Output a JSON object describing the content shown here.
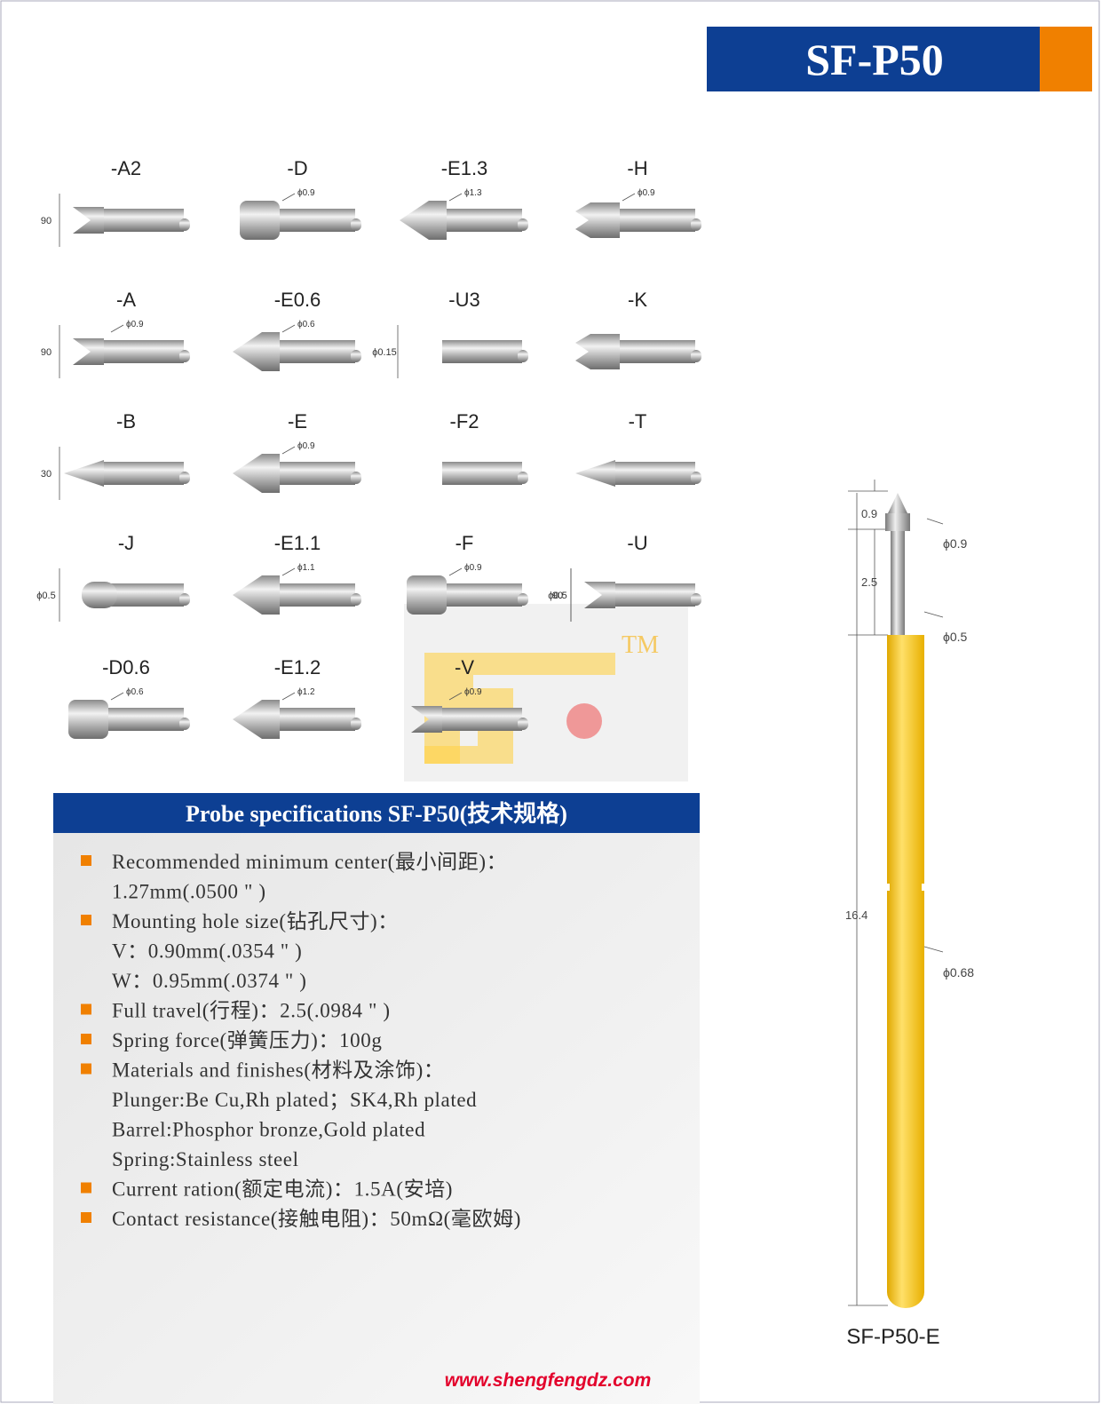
{
  "header": {
    "title": "SF-P50"
  },
  "tips": [
    {
      "label": "-A2",
      "dims": [
        "90"
      ]
    },
    {
      "label": "-D",
      "dims": [
        "ϕ0.9"
      ]
    },
    {
      "label": "-E1.3",
      "dims": [
        "ϕ1.3"
      ]
    },
    {
      "label": "-H",
      "dims": [
        "ϕ0.9"
      ]
    },
    {
      "label": "-A",
      "dims": [
        "ϕ0.9",
        "90"
      ]
    },
    {
      "label": "-E0.6",
      "dims": [
        "ϕ0.6"
      ]
    },
    {
      "label": "-U3",
      "dims": [
        "ϕ0.15"
      ]
    },
    {
      "label": "-K",
      "dims": []
    },
    {
      "label": "-B",
      "dims": [
        "30"
      ]
    },
    {
      "label": "-E",
      "dims": [
        "ϕ0.9"
      ]
    },
    {
      "label": "-F2",
      "dims": []
    },
    {
      "label": "-T",
      "dims": []
    },
    {
      "label": "-J",
      "dims": [
        "ϕ0.5"
      ]
    },
    {
      "label": "-E1.1",
      "dims": [
        "ϕ1.1"
      ]
    },
    {
      "label": "-F",
      "dims": [
        "ϕ0.9"
      ]
    },
    {
      "label": "-U",
      "dims": [
        "ϕ0.5",
        "90"
      ]
    },
    {
      "label": "-D0.6",
      "dims": [
        "ϕ0.6"
      ]
    },
    {
      "label": "-E1.2",
      "dims": [
        "ϕ1.2"
      ]
    },
    {
      "label": "-V",
      "dims": [
        "ϕ0.9"
      ]
    }
  ],
  "watermark": {
    "mark": "TM"
  },
  "specs": {
    "title": "Probe specifications SF-P50(技术规格)",
    "items": [
      {
        "lines": [
          "Recommended minimum center(最小间距)：",
          "1.27mm(.0500 \" )"
        ]
      },
      {
        "lines": [
          "Mounting hole size(钻孔尺寸)：",
          "V：0.90mm(.0354 \" )",
          "W：0.95mm(.0374 \" )"
        ]
      },
      {
        "lines": [
          "Full travel(行程)：2.5(.0984 \" )"
        ]
      },
      {
        "lines": [
          "Spring force(弹簧压力)：100g"
        ]
      },
      {
        "lines": [
          "Materials and finishes(材料及涂饰)：",
          "Plunger:Be Cu,Rh plated；SK4,Rh plated",
          "Barrel:Phosphor bronze,Gold plated",
          "Spring:Stainless steel"
        ]
      },
      {
        "lines": [
          "Current ration(额定电流)：1.5A(安培)"
        ]
      },
      {
        "lines": [
          "Contact resistance(接触电阻)：50mΩ(毫欧姆)"
        ]
      }
    ]
  },
  "probe": {
    "head_length": "0.9",
    "travel": "2.5",
    "length": "16.4",
    "head_dia": "ϕ0.9",
    "plunger_dia": "ϕ0.5",
    "barrel_dia": "ϕ0.68",
    "name": "SF-P50-E"
  },
  "footer": {
    "url": "www.shengfengdz.com"
  }
}
